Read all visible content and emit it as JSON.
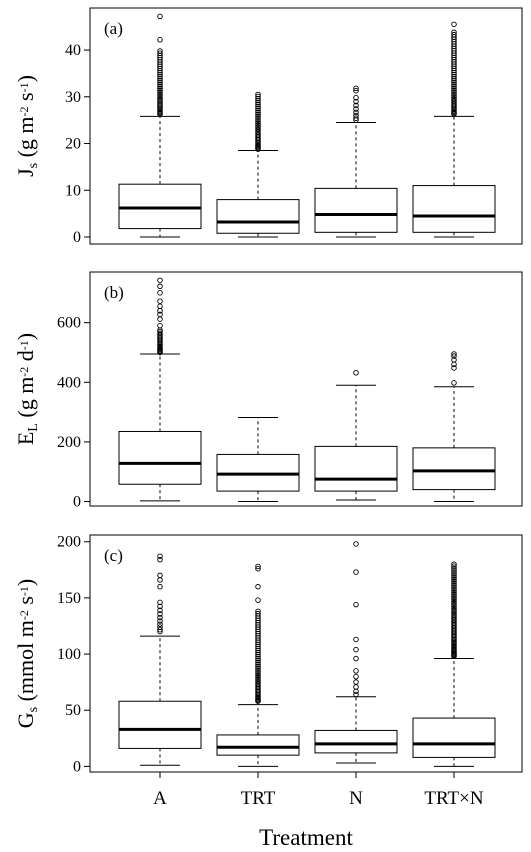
{
  "figure": {
    "xlabel": "Treatment"
  },
  "chart_data": [
    {
      "type": "box",
      "panel_label": "(a)",
      "ylabel": {
        "main": "J",
        "sub": "s",
        "units_pre": " (g m",
        "sup1": "-2",
        "units_mid": " s",
        "sup2": "-1",
        "units_post": ")"
      },
      "ylim": [
        -1.5,
        49
      ],
      "yticks": [
        0,
        10,
        20,
        30,
        40
      ],
      "categories": [
        "A",
        "TRT",
        "N",
        "TRT×N"
      ],
      "boxes": [
        {
          "whisker_low": 0,
          "q1": 1.8,
          "median": 6.2,
          "q3": 11.3,
          "whisker_high": 25.8,
          "outlier_from": 26.3,
          "outlier_to": 39.8,
          "outlier_count": 36,
          "outliers_extra": [
            42.2,
            47.2
          ]
        },
        {
          "whisker_low": 0,
          "q1": 0.8,
          "median": 3.2,
          "q3": 8.0,
          "whisker_high": 18.5,
          "outlier_from": 18.8,
          "outlier_to": 30.5,
          "outlier_count": 34,
          "outliers_extra": []
        },
        {
          "whisker_low": 0,
          "q1": 1.0,
          "median": 4.8,
          "q3": 10.4,
          "whisker_high": 24.5,
          "outlier_from": 25.0,
          "outlier_to": 29.8,
          "outlier_count": 8,
          "outliers_extra": [
            31.3,
            31.8
          ]
        },
        {
          "whisker_low": 0,
          "q1": 1.0,
          "median": 4.5,
          "q3": 11.0,
          "whisker_high": 25.8,
          "outlier_from": 26.3,
          "outlier_to": 43.8,
          "outlier_count": 44,
          "outliers_extra": [
            45.5
          ]
        }
      ]
    },
    {
      "type": "box",
      "panel_label": "(b)",
      "ylabel": {
        "main": "E",
        "sub": "L",
        "units_pre": " (g m",
        "sup1": "-2",
        "units_mid": " d",
        "sup2": "-1",
        "units_post": ")"
      },
      "ylim": [
        -15,
        770
      ],
      "yticks": [
        0,
        200,
        400,
        600
      ],
      "categories": [
        "A",
        "TRT",
        "N",
        "TRT×N"
      ],
      "boxes": [
        {
          "whisker_low": 2,
          "q1": 58,
          "median": 128,
          "q3": 235,
          "whisker_high": 495,
          "outlier_from": 500,
          "outlier_to": 575,
          "outlier_count": 18,
          "outliers_extra": [
            590,
            612,
            628,
            640,
            655,
            672,
            700,
            722,
            742
          ]
        },
        {
          "whisker_low": 0,
          "q1": 35,
          "median": 92,
          "q3": 158,
          "whisker_high": 282,
          "outlier_from": 0,
          "outlier_to": 0,
          "outlier_count": 0,
          "outliers_extra": []
        },
        {
          "whisker_low": 5,
          "q1": 35,
          "median": 75,
          "q3": 185,
          "whisker_high": 390,
          "outlier_from": 0,
          "outlier_to": 0,
          "outlier_count": 0,
          "outliers_extra": [
            432
          ]
        },
        {
          "whisker_low": 0,
          "q1": 40,
          "median": 103,
          "q3": 180,
          "whisker_high": 385,
          "outlier_from": 0,
          "outlier_to": 0,
          "outlier_count": 0,
          "outliers_extra": [
            398,
            448,
            460,
            475,
            488,
            495
          ]
        }
      ]
    },
    {
      "type": "box",
      "panel_label": "(c)",
      "ylabel": {
        "main": "G",
        "sub": "s",
        "units_pre": " (mmol m",
        "sup1": "-2",
        "units_mid": " s",
        "sup2": "-1",
        "units_post": ")"
      },
      "ylim": [
        -5,
        206
      ],
      "yticks": [
        0,
        50,
        100,
        150,
        200
      ],
      "categories": [
        "A",
        "TRT",
        "N",
        "TRT×N"
      ],
      "boxes": [
        {
          "whisker_low": 1,
          "q1": 16,
          "median": 33,
          "q3": 58,
          "whisker_high": 116,
          "outlier_from": 120,
          "outlier_to": 146,
          "outlier_count": 10,
          "outliers_extra": [
            160,
            166,
            170,
            184,
            187
          ]
        },
        {
          "whisker_low": 0,
          "q1": 10,
          "median": 17,
          "q3": 28,
          "whisker_high": 55,
          "outlier_from": 58,
          "outlier_to": 138,
          "outlier_count": 50,
          "outliers_extra": [
            148,
            160,
            176,
            178
          ]
        },
        {
          "whisker_low": 3,
          "q1": 12,
          "median": 20,
          "q3": 32,
          "whisker_high": 62,
          "outlier_from": 64,
          "outlier_to": 85,
          "outlier_count": 6,
          "outliers_extra": [
            96,
            104,
            113,
            144,
            173,
            198
          ]
        },
        {
          "whisker_low": 0,
          "q1": 8,
          "median": 20,
          "q3": 43,
          "whisker_high": 96,
          "outlier_from": 98,
          "outlier_to": 180,
          "outlier_count": 60,
          "outliers_extra": []
        }
      ]
    }
  ]
}
